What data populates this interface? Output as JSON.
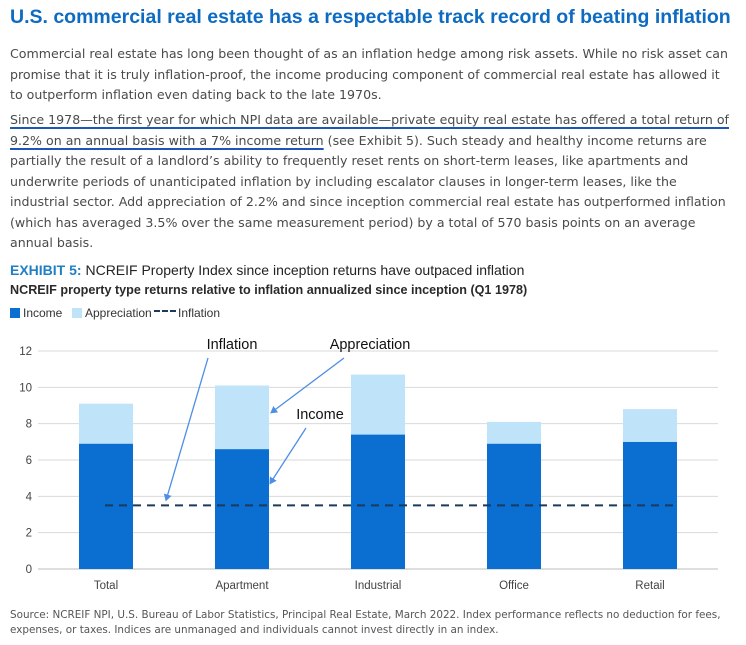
{
  "headline": "U.S. commercial real estate has a respectable track record of beating inflation",
  "paragraph1": "Commercial real estate has long been thought of as an inflation hedge among risk assets. While no risk asset can promise that it is truly inflation-proof, the income producing component of commercial real estate has allowed it to outperform inflation even dating back to the late 1970s.",
  "paragraph2": {
    "underlined": "Since 1978—the first year for which NPI data are available—private equity real estate has offered a total return of 9.2% on an annual basis with a 7% income return",
    "rest": " (see Exhibit 5). Such steady and healthy income returns are partially the result of a landlord’s ability to frequently reset rents on short-term leases, like apartments and underwrite periods of unanticipated inflation by including escalator clauses in longer-term leases, like the industrial sector. Add appreciation of 2.2% and since inception commercial real estate has outperformed inflation (which has averaged 3.5% over the same measurement period) by a total of 570 basis points on an average annual basis."
  },
  "exhibit": {
    "label": "EXHIBIT 5:",
    "title": " NCREIF Property Index since inception returns have outpaced inflation",
    "subtitle": "NCREIF property type returns relative to inflation annualized since inception (Q1 1978)"
  },
  "colors": {
    "income": "#0a6fd0",
    "appreciation": "#bfe3f8",
    "inflation": "#1b3a5c",
    "grid": "#d9d9d9",
    "annotation_arrow": "#4d8ee6"
  },
  "chart_data": {
    "type": "bar",
    "stacked": true,
    "categories": [
      "Total",
      "Apartment",
      "Industrial",
      "Office",
      "Retail"
    ],
    "series": [
      {
        "name": "Income",
        "values": [
          6.9,
          6.6,
          7.4,
          6.9,
          7.0
        ]
      },
      {
        "name": "Appreciation",
        "values": [
          2.2,
          3.5,
          3.3,
          1.2,
          1.8
        ]
      }
    ],
    "inflation": {
      "name": "Inflation",
      "value": 3.5,
      "style": "dashed"
    },
    "ylim": [
      0,
      12
    ],
    "yticks": [
      0,
      2,
      4,
      6,
      8,
      10,
      12
    ],
    "grid": true,
    "legend_position": "top-left",
    "annotations": [
      {
        "text": "Inflation",
        "points_to": "Inflation"
      },
      {
        "text": "Appreciation",
        "points_to": "Appreciation"
      },
      {
        "text": "Income",
        "points_to": "Income"
      }
    ]
  },
  "source": "Source: NCREIF NPI, U.S. Bureau of Labor Statistics, Principal Real Estate, March 2022. Index performance reflects no deduction for fees, expenses, or taxes. Indices are unmanaged and individuals cannot invest directly in an index."
}
